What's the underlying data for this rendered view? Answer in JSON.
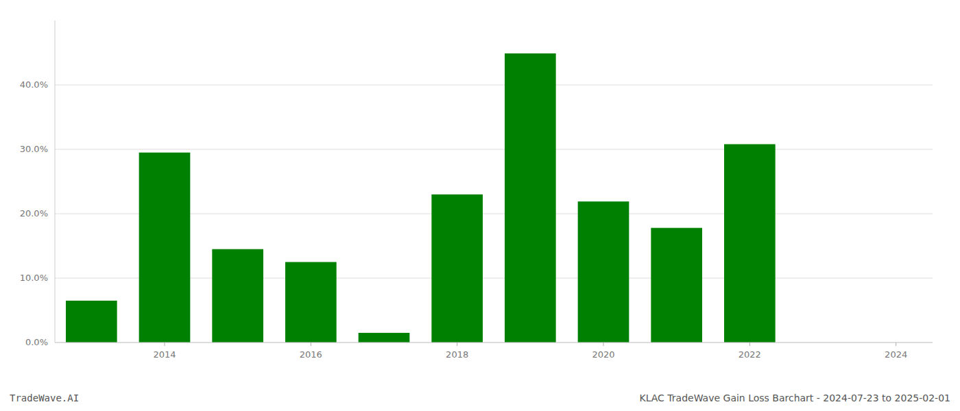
{
  "chart_data": {
    "type": "bar",
    "title": "KLAC TradeWave Gain Loss Barchart - 2024-07-23 to 2025-02-01",
    "annotations": [
      "TradeWave.AI"
    ],
    "x": [
      2013,
      2014,
      2015,
      2016,
      2017,
      2018,
      2019,
      2020,
      2021,
      2022,
      2023
    ],
    "values": [
      0.065,
      0.295,
      0.145,
      0.125,
      0.015,
      0.23,
      0.449,
      0.219,
      0.178,
      0.308,
      0.0
    ],
    "color": "#008000",
    "xlim": [
      2012.5,
      2024.5
    ],
    "xticks": [
      2014,
      2016,
      2018,
      2020,
      2022,
      2024
    ],
    "ylim": [
      0,
      0.5
    ],
    "yticks": [
      {
        "value": 0.0,
        "label": "0.0%"
      },
      {
        "value": 0.1,
        "label": "10.0%"
      },
      {
        "value": 0.2,
        "label": "20.0%"
      },
      {
        "value": 0.3,
        "label": "30.0%"
      },
      {
        "value": 0.4,
        "label": "40.0%"
      }
    ],
    "grid": true
  }
}
